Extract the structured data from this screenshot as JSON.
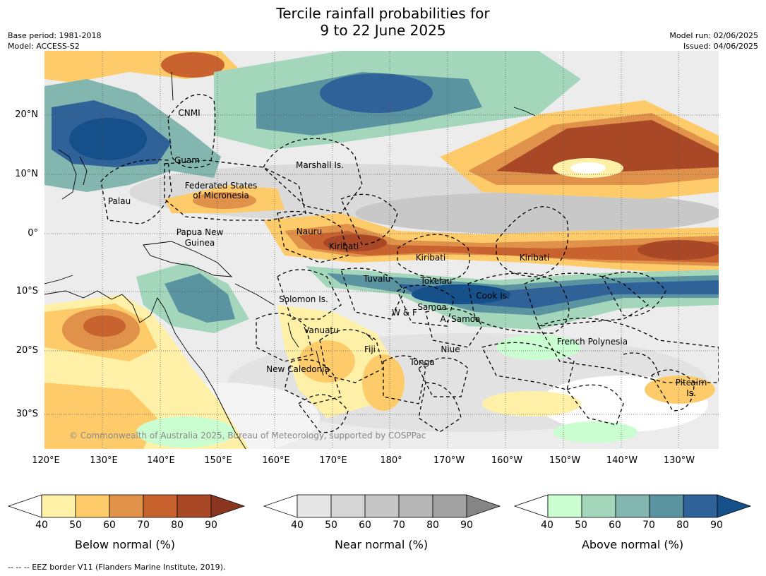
{
  "title_line1": "Tercile rainfall probabilities for",
  "title_line2": "9 to 22 June 2025",
  "meta_left": [
    "Base period: 1981-2018",
    "Model: ACCESS-S2"
  ],
  "meta_right": [
    "Model run: 02/06/2025",
    "Issued: 04/06/2025"
  ],
  "lat_ticks": [
    "20°N",
    "10°N",
    "0°",
    "10°S",
    "20°S",
    "30°S"
  ],
  "lon_ticks": [
    "120°E",
    "130°E",
    "140°E",
    "150°E",
    "160°E",
    "170°E",
    "180°",
    "170°W",
    "160°W",
    "150°W",
    "140°W",
    "130°W"
  ],
  "copyright": "© Commonwealth of Australia 2025, Bureau of Meteorology, supported by COSPPac",
  "regions": [
    "CNMI",
    "Guam",
    "Marshall Is.",
    "Federated States",
    "of Micronesia",
    "Palau",
    "Papua New",
    "Guinea",
    "Nauru",
    "Kiribati",
    "Kiribati",
    "Kiribati",
    "Tuvalu",
    "Tokelau",
    "Solomon Is.",
    "W & F",
    "Samoa",
    "A. Samoa",
    "Cook Is.",
    "Vanuatu",
    "Fiji",
    "Niue",
    "Tonga",
    "French Polynesia",
    "New Caledonia",
    "Pitcairn",
    "Is."
  ],
  "colorbars": [
    {
      "label": "Below normal (%)",
      "ticks": [
        "40",
        "50",
        "60",
        "70",
        "80",
        "90"
      ],
      "colors": [
        "#fff0a8",
        "#fecb6a",
        "#e0924a",
        "#c8622f",
        "#a84826",
        "#8a3520"
      ]
    },
    {
      "label": "Near normal (%)",
      "ticks": [
        "40",
        "50",
        "60",
        "70",
        "80",
        "90"
      ],
      "colors": [
        "#e6e6e6",
        "#d6d6d6",
        "#c6c6c6",
        "#b6b6b6",
        "#a2a2a2",
        "#858585"
      ]
    },
    {
      "label": "Above normal (%)",
      "ticks": [
        "40",
        "50",
        "60",
        "70",
        "80",
        "90"
      ],
      "colors": [
        "#cafdd0",
        "#a4d6bc",
        "#82b6ae",
        "#5a94a0",
        "#2f6298",
        "#16508a"
      ]
    }
  ],
  "footnote": "--  --  -- EEZ border V11 (Flanders Marine Institute, 2019)."
}
